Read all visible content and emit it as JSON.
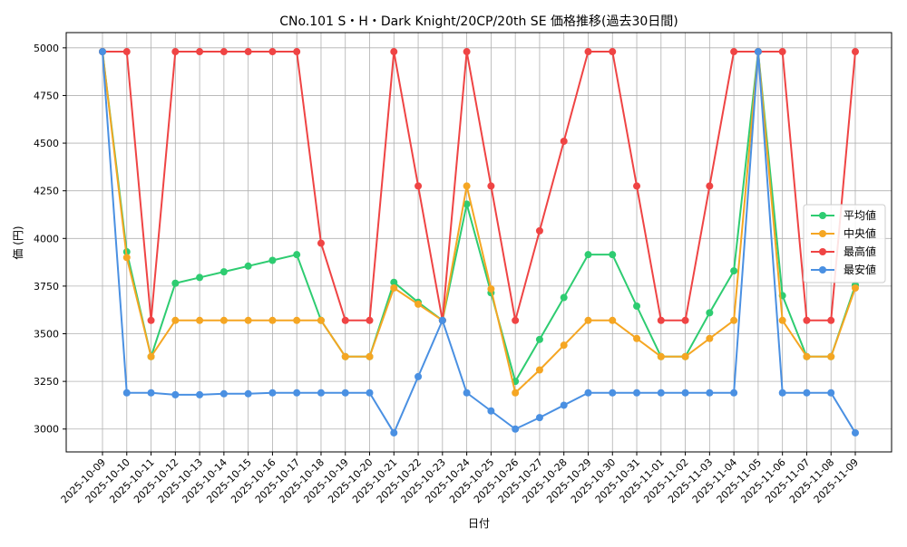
{
  "chart_data": {
    "type": "line",
    "title": "CNo.101 S・H・Dark Knight/20CP/20th SE 価格推移(過去30日間)",
    "xlabel": "日付",
    "ylabel": "価 (円)",
    "ylim": [
      2880,
      5080
    ],
    "yticks": [
      3000,
      3250,
      3500,
      3750,
      4000,
      4250,
      4500,
      4750,
      5000
    ],
    "grid": true,
    "legend_position": "right",
    "categories": [
      "2025-10-09",
      "2025-10-10",
      "2025-10-11",
      "2025-10-12",
      "2025-10-13",
      "2025-10-14",
      "2025-10-15",
      "2025-10-16",
      "2025-10-17",
      "2025-10-18",
      "2025-10-19",
      "2025-10-20",
      "2025-10-21",
      "2025-10-22",
      "2025-10-23",
      "2025-10-24",
      "2025-10-25",
      "2025-10-26",
      "2025-10-27",
      "2025-10-28",
      "2025-10-29",
      "2025-10-30",
      "2025-10-31",
      "2025-11-01",
      "2025-11-02",
      "2025-11-03",
      "2025-11-04",
      "2025-11-05",
      "2025-11-06",
      "2025-11-07",
      "2025-11-08",
      "2025-11-09"
    ],
    "series": [
      {
        "name": "平均値",
        "color": "#2ecc71",
        "values": [
          4980,
          3930,
          3380,
          3765,
          3795,
          3825,
          3855,
          3885,
          3915,
          3570,
          3380,
          3380,
          3770,
          3665,
          3570,
          4180,
          3715,
          3250,
          3470,
          3690,
          3915,
          3915,
          3645,
          3380,
          3380,
          3610,
          3830,
          4980,
          3700,
          3380,
          3380,
          3755
        ]
      },
      {
        "name": "中央値",
        "color": "#f5a623",
        "values": [
          4980,
          3900,
          3380,
          3570,
          3570,
          3570,
          3570,
          3570,
          3570,
          3570,
          3380,
          3380,
          3740,
          3655,
          3570,
          4275,
          3735,
          3190,
          3310,
          3440,
          3570,
          3570,
          3475,
          3380,
          3380,
          3475,
          3570,
          4980,
          3570,
          3380,
          3380,
          3740
        ]
      },
      {
        "name": "最高値",
        "color": "#ef4444",
        "values": [
          4980,
          4980,
          3570,
          4980,
          4980,
          4980,
          4980,
          4980,
          4980,
          3975,
          3570,
          3570,
          4980,
          4275,
          3570,
          4980,
          4275,
          3570,
          4040,
          4510,
          4980,
          4980,
          4275,
          3570,
          3570,
          4275,
          4980,
          4980,
          4980,
          3570,
          3570,
          4980
        ]
      },
      {
        "name": "最安値",
        "color": "#4a90e2",
        "values": [
          4980,
          3190,
          3190,
          3180,
          3180,
          3185,
          3185,
          3190,
          3190,
          3190,
          3190,
          3190,
          2980,
          3275,
          3570,
          3190,
          3095,
          3000,
          3060,
          3125,
          3190,
          3190,
          3190,
          3190,
          3190,
          3190,
          3190,
          4980,
          3190,
          3190,
          3190,
          2980
        ]
      }
    ]
  }
}
